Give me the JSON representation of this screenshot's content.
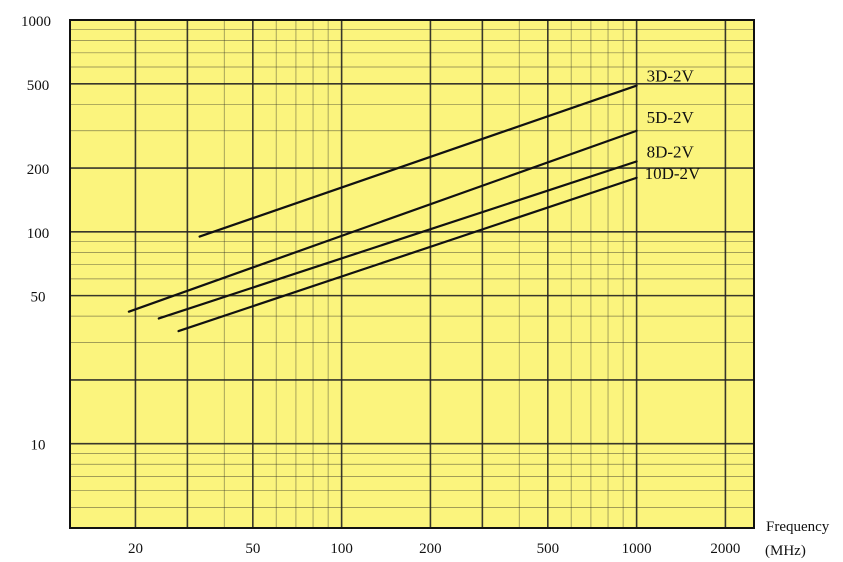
{
  "chart_data": {
    "type": "line",
    "title": "",
    "xlabel": "Frequency",
    "xunit": "(MHz)",
    "ylabel": "",
    "x_scale": "log",
    "y_scale": "log",
    "xlim": [
      12,
      2500
    ],
    "ylim": [
      4,
      1000
    ],
    "x_ticks": [
      {
        "value": 20,
        "label": "20"
      },
      {
        "value": 50,
        "label": "50"
      },
      {
        "value": 100,
        "label": "100"
      },
      {
        "value": 200,
        "label": "200"
      },
      {
        "value": 500,
        "label": "500"
      },
      {
        "value": 1000,
        "label": "1000"
      },
      {
        "value": 2000,
        "label": "2000"
      }
    ],
    "y_ticks": [
      {
        "value": 10,
        "label": "10"
      },
      {
        "value": 50,
        "label": "50"
      },
      {
        "value": 100,
        "label": "100"
      },
      {
        "value": 200,
        "label": "200"
      },
      {
        "value": 500,
        "label": "500"
      },
      {
        "value": 1000,
        "label": "1000"
      }
    ],
    "grid": true,
    "legend": "labels at right end of each line",
    "colors": {
      "background": "#fbf47d",
      "grid": "#222222",
      "line": "#111111"
    },
    "series": [
      {
        "name": "3D-2V",
        "x": [
          33,
          1000
        ],
        "y": [
          95,
          490
        ]
      },
      {
        "name": "5D-2V",
        "x": [
          19,
          1000
        ],
        "y": [
          42,
          300
        ]
      },
      {
        "name": "8D-2V",
        "x": [
          24,
          1000
        ],
        "y": [
          39,
          215
        ]
      },
      {
        "name": "10D-2V",
        "x": [
          28,
          1000
        ],
        "y": [
          34,
          180
        ]
      }
    ]
  }
}
